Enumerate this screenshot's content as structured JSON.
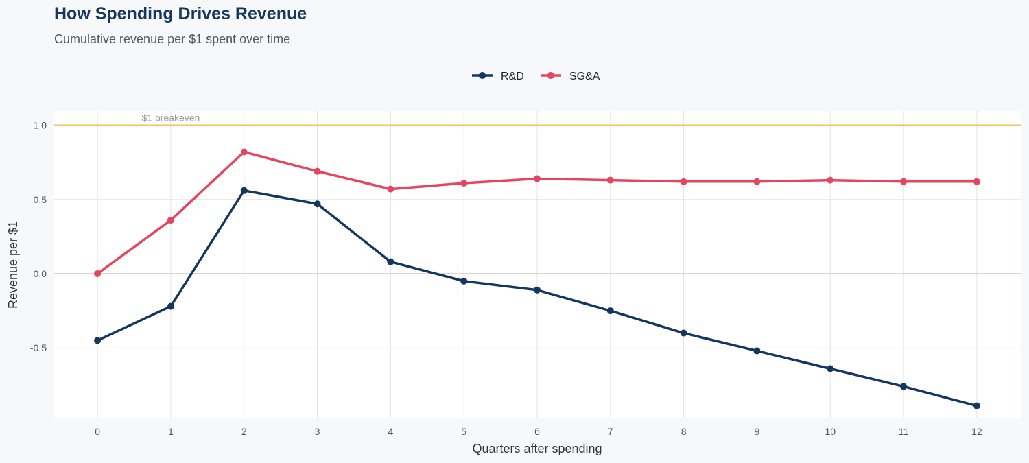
{
  "chart_data": {
    "type": "line",
    "title": "How Spending Drives Revenue",
    "subtitle": "Cumulative revenue per $1 spent over time",
    "xlabel": "Quarters after spending",
    "ylabel": "Revenue per $1",
    "x": [
      0,
      1,
      2,
      3,
      4,
      5,
      6,
      7,
      8,
      9,
      10,
      11,
      12
    ],
    "xlim": [
      -0.6,
      12.6
    ],
    "ylim": [
      -0.975,
      1.095
    ],
    "yticks": [
      -0.5,
      0.0,
      0.5,
      1.0
    ],
    "ytick_labels": [
      "-0.5",
      "0.0",
      "0.5",
      "1.0"
    ],
    "xtick_labels": [
      "0",
      "1",
      "2",
      "3",
      "4",
      "5",
      "6",
      "7",
      "8",
      "9",
      "10",
      "11",
      "12"
    ],
    "grid": true,
    "legend_position": "top",
    "reference_line": {
      "y": 1.0,
      "label": "$1 breakeven",
      "color": "#f2c45a"
    },
    "zero_line": {
      "y": 0.0,
      "color": "#c8c8c8"
    },
    "series": [
      {
        "name": "R&D",
        "color": "#14365f",
        "values": [
          -0.45,
          -0.22,
          0.56,
          0.47,
          0.08,
          -0.05,
          -0.11,
          -0.25,
          -0.4,
          -0.52,
          -0.64,
          -0.76,
          -0.89
        ]
      },
      {
        "name": "SG&A",
        "color": "#e5455f",
        "values": [
          0.0,
          0.36,
          0.82,
          0.69,
          0.57,
          0.61,
          0.64,
          0.63,
          0.62,
          0.62,
          0.63,
          0.62,
          0.62
        ]
      }
    ]
  }
}
